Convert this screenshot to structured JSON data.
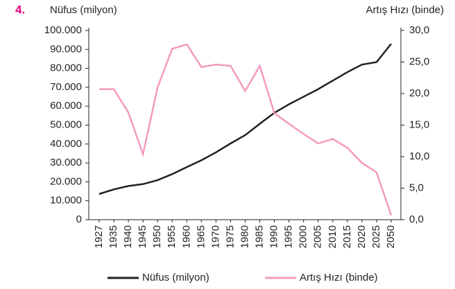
{
  "chart_data": {
    "type": "line",
    "number": "4.",
    "y_label": "Nüfus (milyon)",
    "y2_label": "Artış Hızı (binde)",
    "categories": [
      "1927",
      "1935",
      "1940",
      "1945",
      "1950",
      "1955",
      "1960",
      "1965",
      "1970",
      "1975",
      "1980",
      "1985",
      "1990",
      "1995",
      "2000",
      "2005",
      "2010",
      "2015",
      "2020",
      "2025",
      "2050"
    ],
    "series": [
      {
        "name": "Nüfus (milyon)",
        "color": "#231f20",
        "axis": "y",
        "values": [
          13600,
          16000,
          17800,
          18800,
          20900,
          24100,
          27800,
          31400,
          35600,
          40300,
          44700,
          50700,
          56500,
          61000,
          65000,
          69000,
          73500,
          78000,
          82000,
          83300,
          93000
        ]
      },
      {
        "name": "Artış Hızı (binde)",
        "color": "#f49ac1",
        "axis": "y2",
        "values": [
          20.7,
          20.7,
          17.0,
          10.4,
          21.0,
          27.1,
          27.8,
          24.2,
          24.6,
          24.4,
          20.4,
          24.4,
          16.9,
          15.2,
          13.6,
          12.1,
          12.8,
          11.4,
          9.0,
          7.5,
          0.7
        ]
      }
    ],
    "ylim": [
      0,
      100000
    ],
    "yticks": [
      0,
      {
        "value": 10000,
        "label": "10.000"
      },
      {
        "value": 20000,
        "label": "20.000"
      },
      {
        "value": 30000,
        "label": "30.000"
      },
      {
        "value": 40000,
        "label": "40.000"
      },
      {
        "value": 50000,
        "label": "50.000"
      },
      {
        "value": 60000,
        "label": "60.000"
      },
      {
        "value": 70000,
        "label": "70.000"
      },
      {
        "value": 80000,
        "label": "80.000"
      },
      {
        "value": 90000,
        "label": "90.000"
      },
      {
        "value": 100000,
        "label": "100.000"
      }
    ],
    "y2lim": [
      0,
      30
    ],
    "y2ticks": [
      {
        "value": 0,
        "label": "0,0"
      },
      {
        "value": 5,
        "label": "5,0"
      },
      {
        "value": 10,
        "label": "10,0"
      },
      {
        "value": 15,
        "label": "15,0"
      },
      {
        "value": 20,
        "label": "20,0"
      },
      {
        "value": 25,
        "label": "25,0"
      },
      {
        "value": 30,
        "label": "30,0"
      }
    ],
    "grid": false
  }
}
